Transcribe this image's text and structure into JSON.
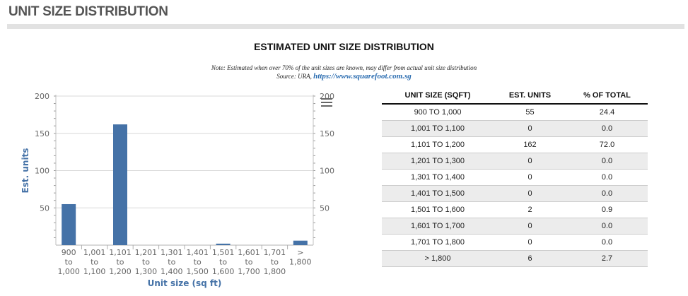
{
  "section_header": "UNIT SIZE DISTRIBUTION",
  "title": "ESTIMATED UNIT SIZE DISTRIBUTION",
  "note": "Note: Estimated when over 70% of the unit sizes are known, may differ from actual unit size distribution",
  "source_prefix": "Source: URA, ",
  "source_link": "https://www.squarefoot.com.sg",
  "chart_data": {
    "type": "bar",
    "categories": [
      [
        "900",
        "to",
        "1,000"
      ],
      [
        "1,001",
        "to",
        "1,100"
      ],
      [
        "1,101",
        "to",
        "1,200"
      ],
      [
        "1,201",
        "to",
        "1,300"
      ],
      [
        "1,301",
        "to",
        "1,400"
      ],
      [
        "1,401",
        "to",
        "1,500"
      ],
      [
        "1,501",
        "to",
        "1,600"
      ],
      [
        "1,601",
        "to",
        "1,700"
      ],
      [
        "1,701",
        "to",
        "1,800"
      ],
      [
        ">",
        "1,800"
      ]
    ],
    "values": [
      55,
      0,
      162,
      0,
      0,
      0,
      2,
      0,
      0,
      6
    ],
    "ylim": [
      0,
      200
    ],
    "yticks": [
      50,
      100,
      150,
      200
    ],
    "xlabel": "Unit size (sq ft)",
    "ylabel": "Est. units",
    "grid": true,
    "bar_color": "#4572a7"
  },
  "table": {
    "headers": [
      "UNIT SIZE (SQFT)",
      "EST. UNITS",
      "% OF TOTAL"
    ],
    "rows": [
      [
        "900 TO 1,000",
        "55",
        "24.4"
      ],
      [
        "1,001 TO 1,100",
        "0",
        "0.0"
      ],
      [
        "1,101 TO 1,200",
        "162",
        "72.0"
      ],
      [
        "1,201 TO 1,300",
        "0",
        "0.0"
      ],
      [
        "1,301 TO 1,400",
        "0",
        "0.0"
      ],
      [
        "1,401 TO 1,500",
        "0",
        "0.0"
      ],
      [
        "1,501 TO 1,600",
        "2",
        "0.9"
      ],
      [
        "1,601 TO 1,700",
        "0",
        "0.0"
      ],
      [
        "1,701 TO 1,800",
        "0",
        "0.0"
      ],
      [
        "> 1,800",
        "6",
        "2.7"
      ]
    ]
  },
  "menu_icon": "hamburger-menu-icon"
}
